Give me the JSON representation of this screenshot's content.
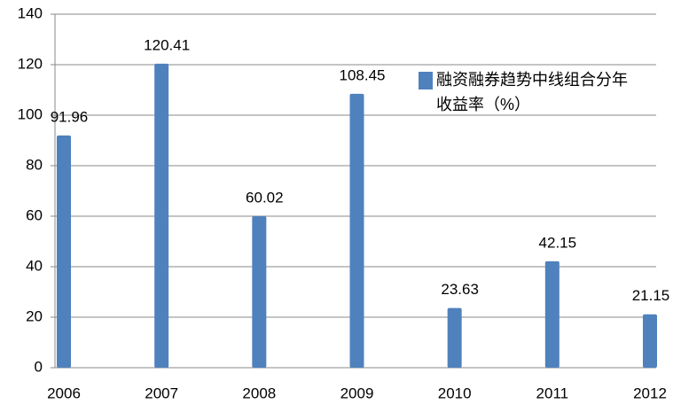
{
  "chart_data": {
    "type": "bar",
    "categories": [
      "2006",
      "2007",
      "2008",
      "2009",
      "2010",
      "2011",
      "2012"
    ],
    "series": [
      {
        "name": "融资融券趋势中线组合分年收益率（%）",
        "color": "#4f81bd",
        "values": [
          91.96,
          120.41,
          60.02,
          108.45,
          23.63,
          42.15,
          21.15
        ]
      }
    ],
    "ylim": [
      0,
      140
    ],
    "yticks": [
      0,
      20,
      40,
      60,
      80,
      100,
      120,
      140
    ],
    "grid": true
  }
}
